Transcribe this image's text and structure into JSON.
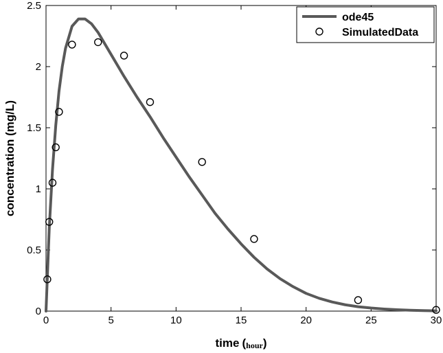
{
  "chart_data": {
    "type": "line",
    "xlabel": "time",
    "xlabel_unit": "hour",
    "ylabel": "concentration (mg/L)",
    "xlim": [
      0,
      30
    ],
    "ylim": [
      0,
      2.5
    ],
    "x_ticks": [
      0,
      5,
      10,
      15,
      20,
      25,
      30
    ],
    "y_ticks": [
      0,
      0.5,
      1,
      1.5,
      2,
      2.5
    ],
    "grid": false,
    "legend_position": "top-right",
    "colors": {
      "line": "#595959",
      "marker": "#000000",
      "axis": "#000000"
    },
    "series": [
      {
        "name": "ode45",
        "style": "line",
        "x": [
          0,
          0.25,
          0.5,
          0.75,
          1,
          1.25,
          1.5,
          2,
          2.5,
          3,
          3.5,
          4,
          5,
          6,
          7,
          8,
          9,
          10,
          11,
          12,
          13,
          14,
          15,
          16,
          17,
          18,
          19,
          20,
          21,
          22,
          23,
          24,
          25,
          26,
          27,
          28,
          29,
          30
        ],
        "y": [
          0,
          0.68,
          1.16,
          1.52,
          1.8,
          2.0,
          2.15,
          2.33,
          2.39,
          2.39,
          2.35,
          2.28,
          2.1,
          1.92,
          1.75,
          1.59,
          1.42,
          1.26,
          1.1,
          0.95,
          0.8,
          0.67,
          0.55,
          0.44,
          0.345,
          0.265,
          0.2,
          0.145,
          0.105,
          0.075,
          0.052,
          0.036,
          0.025,
          0.017,
          0.011,
          0.007,
          0.004,
          0.002
        ]
      },
      {
        "name": "SimulatedData",
        "style": "markers",
        "x": [
          0.1,
          0.25,
          0.5,
          0.75,
          1,
          2,
          4,
          6,
          8,
          12,
          16,
          24,
          30
        ],
        "y": [
          0.26,
          0.73,
          1.05,
          1.34,
          1.63,
          2.18,
          2.2,
          2.09,
          1.71,
          1.22,
          0.59,
          0.09,
          0.01
        ]
      }
    ]
  }
}
